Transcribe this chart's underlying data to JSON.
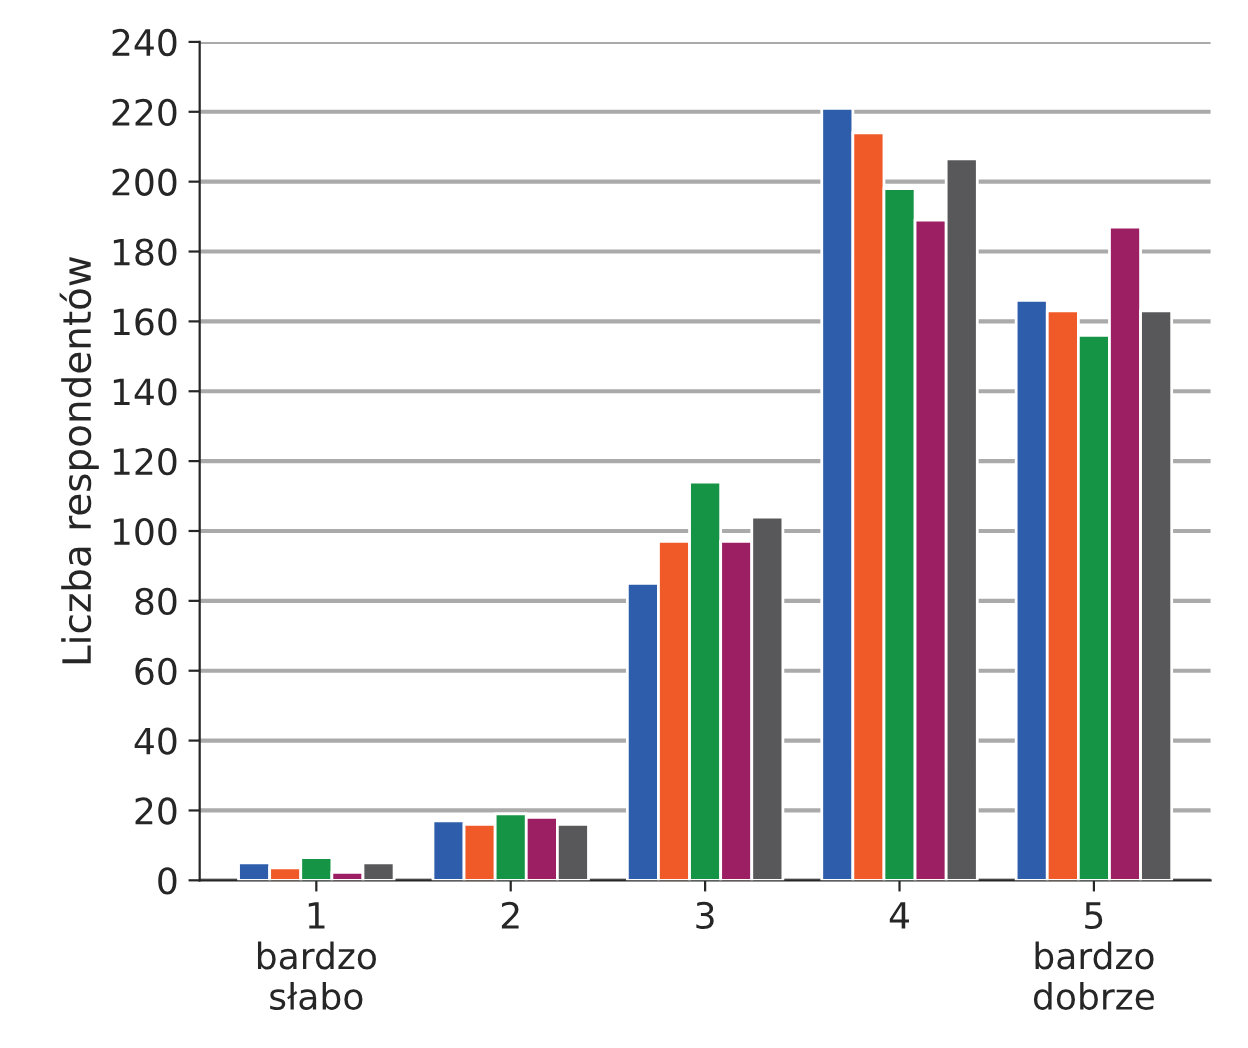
{
  "chart_data": {
    "type": "bar",
    "ylabel": "Liczba respondentów",
    "categories": [
      "1\nbardzo\nsłabo",
      "2",
      "3",
      "4",
      "5\nbardzo\ndobrze"
    ],
    "series": [
      {
        "color": "#2e5eab",
        "values": [
          5,
          17,
          85,
          221,
          166
        ]
      },
      {
        "color": "#f05a28",
        "values": [
          3.6,
          16,
          97,
          214,
          163
        ]
      },
      {
        "color": "#149444",
        "values": [
          6.5,
          19,
          114,
          198,
          156
        ]
      },
      {
        "color": "#9c1f63",
        "values": [
          2.3,
          18,
          97,
          189,
          187
        ]
      },
      {
        "color": "#58585a",
        "values": [
          5,
          16,
          104,
          206.5,
          163
        ]
      }
    ],
    "ylim": [
      0,
      240
    ],
    "yticks": [
      0,
      20,
      40,
      60,
      80,
      100,
      120,
      140,
      160,
      180,
      200,
      220,
      240
    ],
    "grid": "y",
    "legend": false
  }
}
